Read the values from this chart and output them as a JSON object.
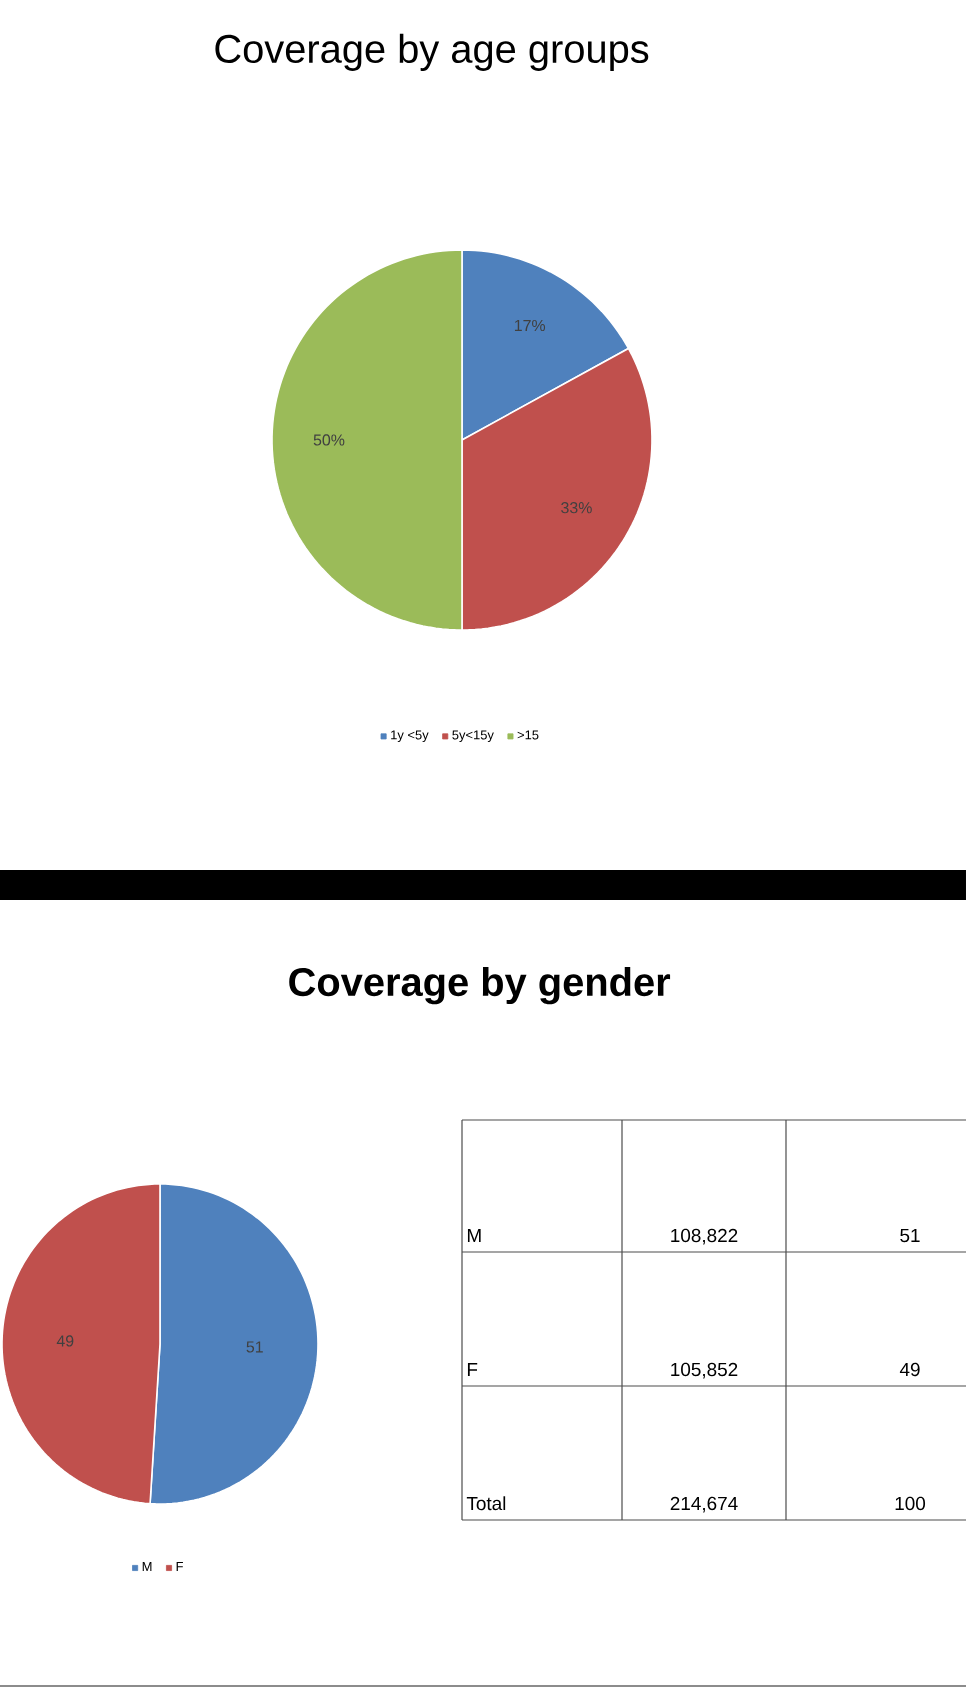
{
  "chart_data": [
    {
      "type": "pie",
      "title": "Coverage by age groups",
      "categories": [
        "1y <5y",
        "5y<15y",
        ">15"
      ],
      "values": [
        17,
        33,
        50
      ],
      "colors": [
        "#4f81bd",
        "#c0504d",
        "#9bbb59"
      ],
      "value_labels": [
        "17%",
        "33%",
        "50%"
      ],
      "legend": "bottom"
    },
    {
      "type": "pie",
      "title": "Coverage by gender",
      "categories": [
        "M",
        "F"
      ],
      "values": [
        51,
        49
      ],
      "colors": [
        "#4f81bd",
        "#c0504d"
      ],
      "data_labels": true,
      "legend": "bottom"
    },
    {
      "type": "other",
      "annotations": [
        "M",
        "108,822",
        "51",
        "F",
        "105,852",
        "49",
        "Total",
        "214,674",
        "100"
      ]
    }
  ]
}
